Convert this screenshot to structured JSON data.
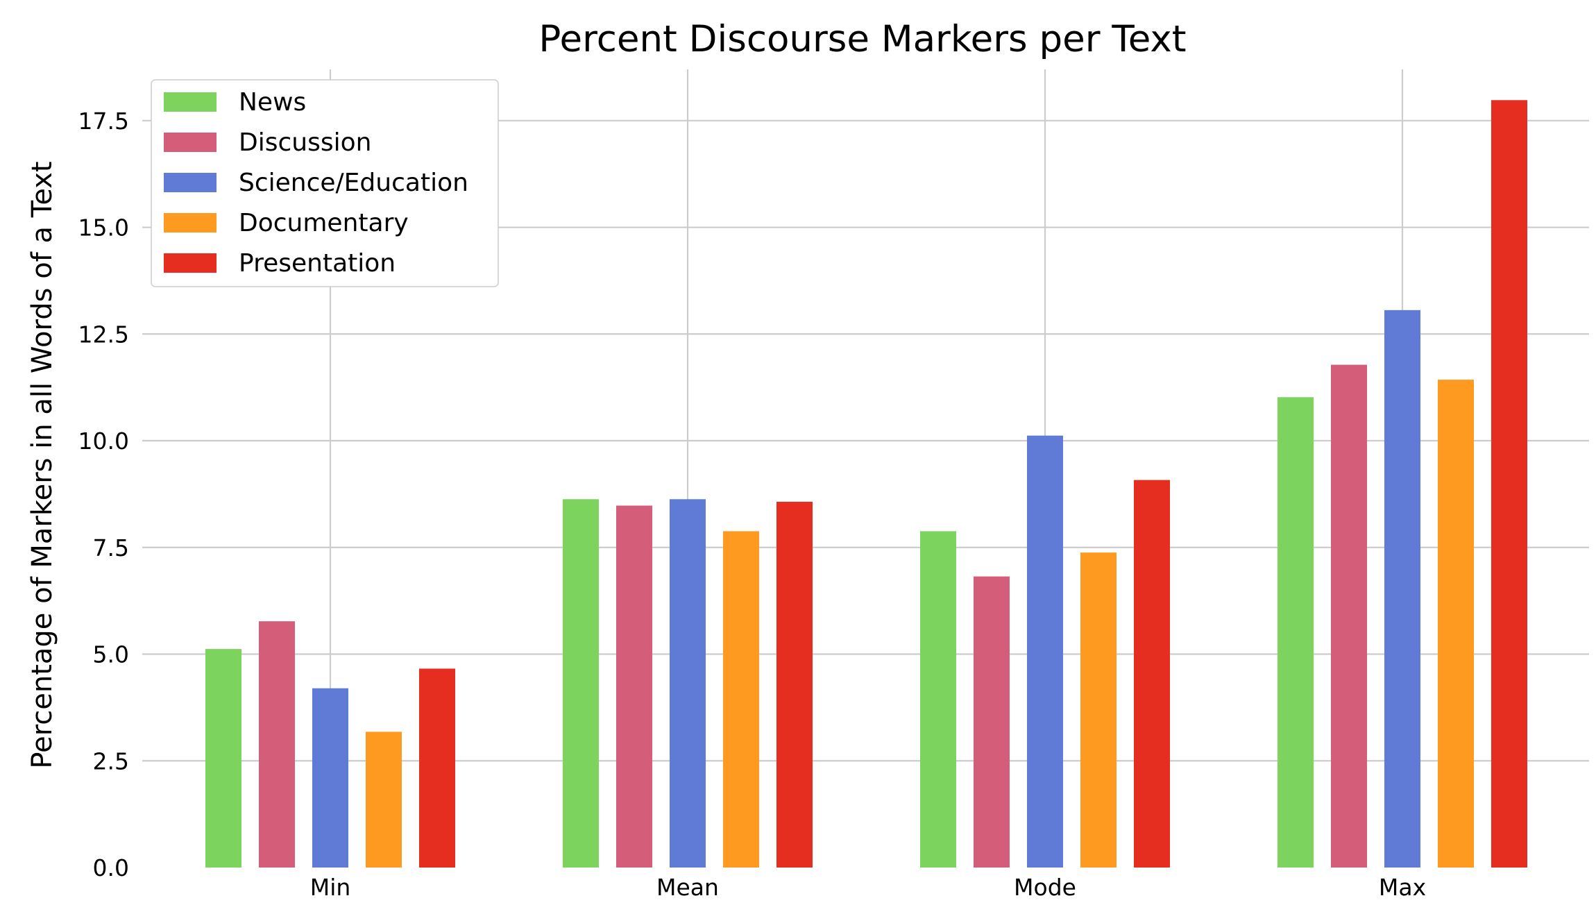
{
  "chart_data": {
    "type": "bar",
    "title": "Percent Discourse Markers per Text",
    "xlabel": "",
    "ylabel": "Percentage of Markers in all Words of a Text",
    "categories": [
      "Min",
      "Mean",
      "Mode",
      "Max"
    ],
    "series": [
      {
        "name": "News",
        "color": "#7cd45e",
        "values": [
          5.12,
          8.63,
          7.88,
          11.02
        ]
      },
      {
        "name": "Discussion",
        "color": "#d45d7a",
        "values": [
          5.77,
          8.48,
          6.82,
          11.78
        ]
      },
      {
        "name": "Science/Education",
        "color": "#5f7bd5",
        "values": [
          4.2,
          8.63,
          10.12,
          13.06
        ]
      },
      {
        "name": "Documentary",
        "color": "#ff9a20",
        "values": [
          3.18,
          7.88,
          7.38,
          11.43
        ]
      },
      {
        "name": "Presentation",
        "color": "#e52d20",
        "values": [
          4.66,
          8.57,
          9.08,
          17.98
        ]
      }
    ],
    "ylim": [
      0,
      18.7
    ],
    "yticks": [
      "0.0",
      "2.5",
      "5.0",
      "7.5",
      "10.0",
      "12.5",
      "15.0",
      "17.5"
    ],
    "grid": true,
    "legend_position": "top-left"
  }
}
